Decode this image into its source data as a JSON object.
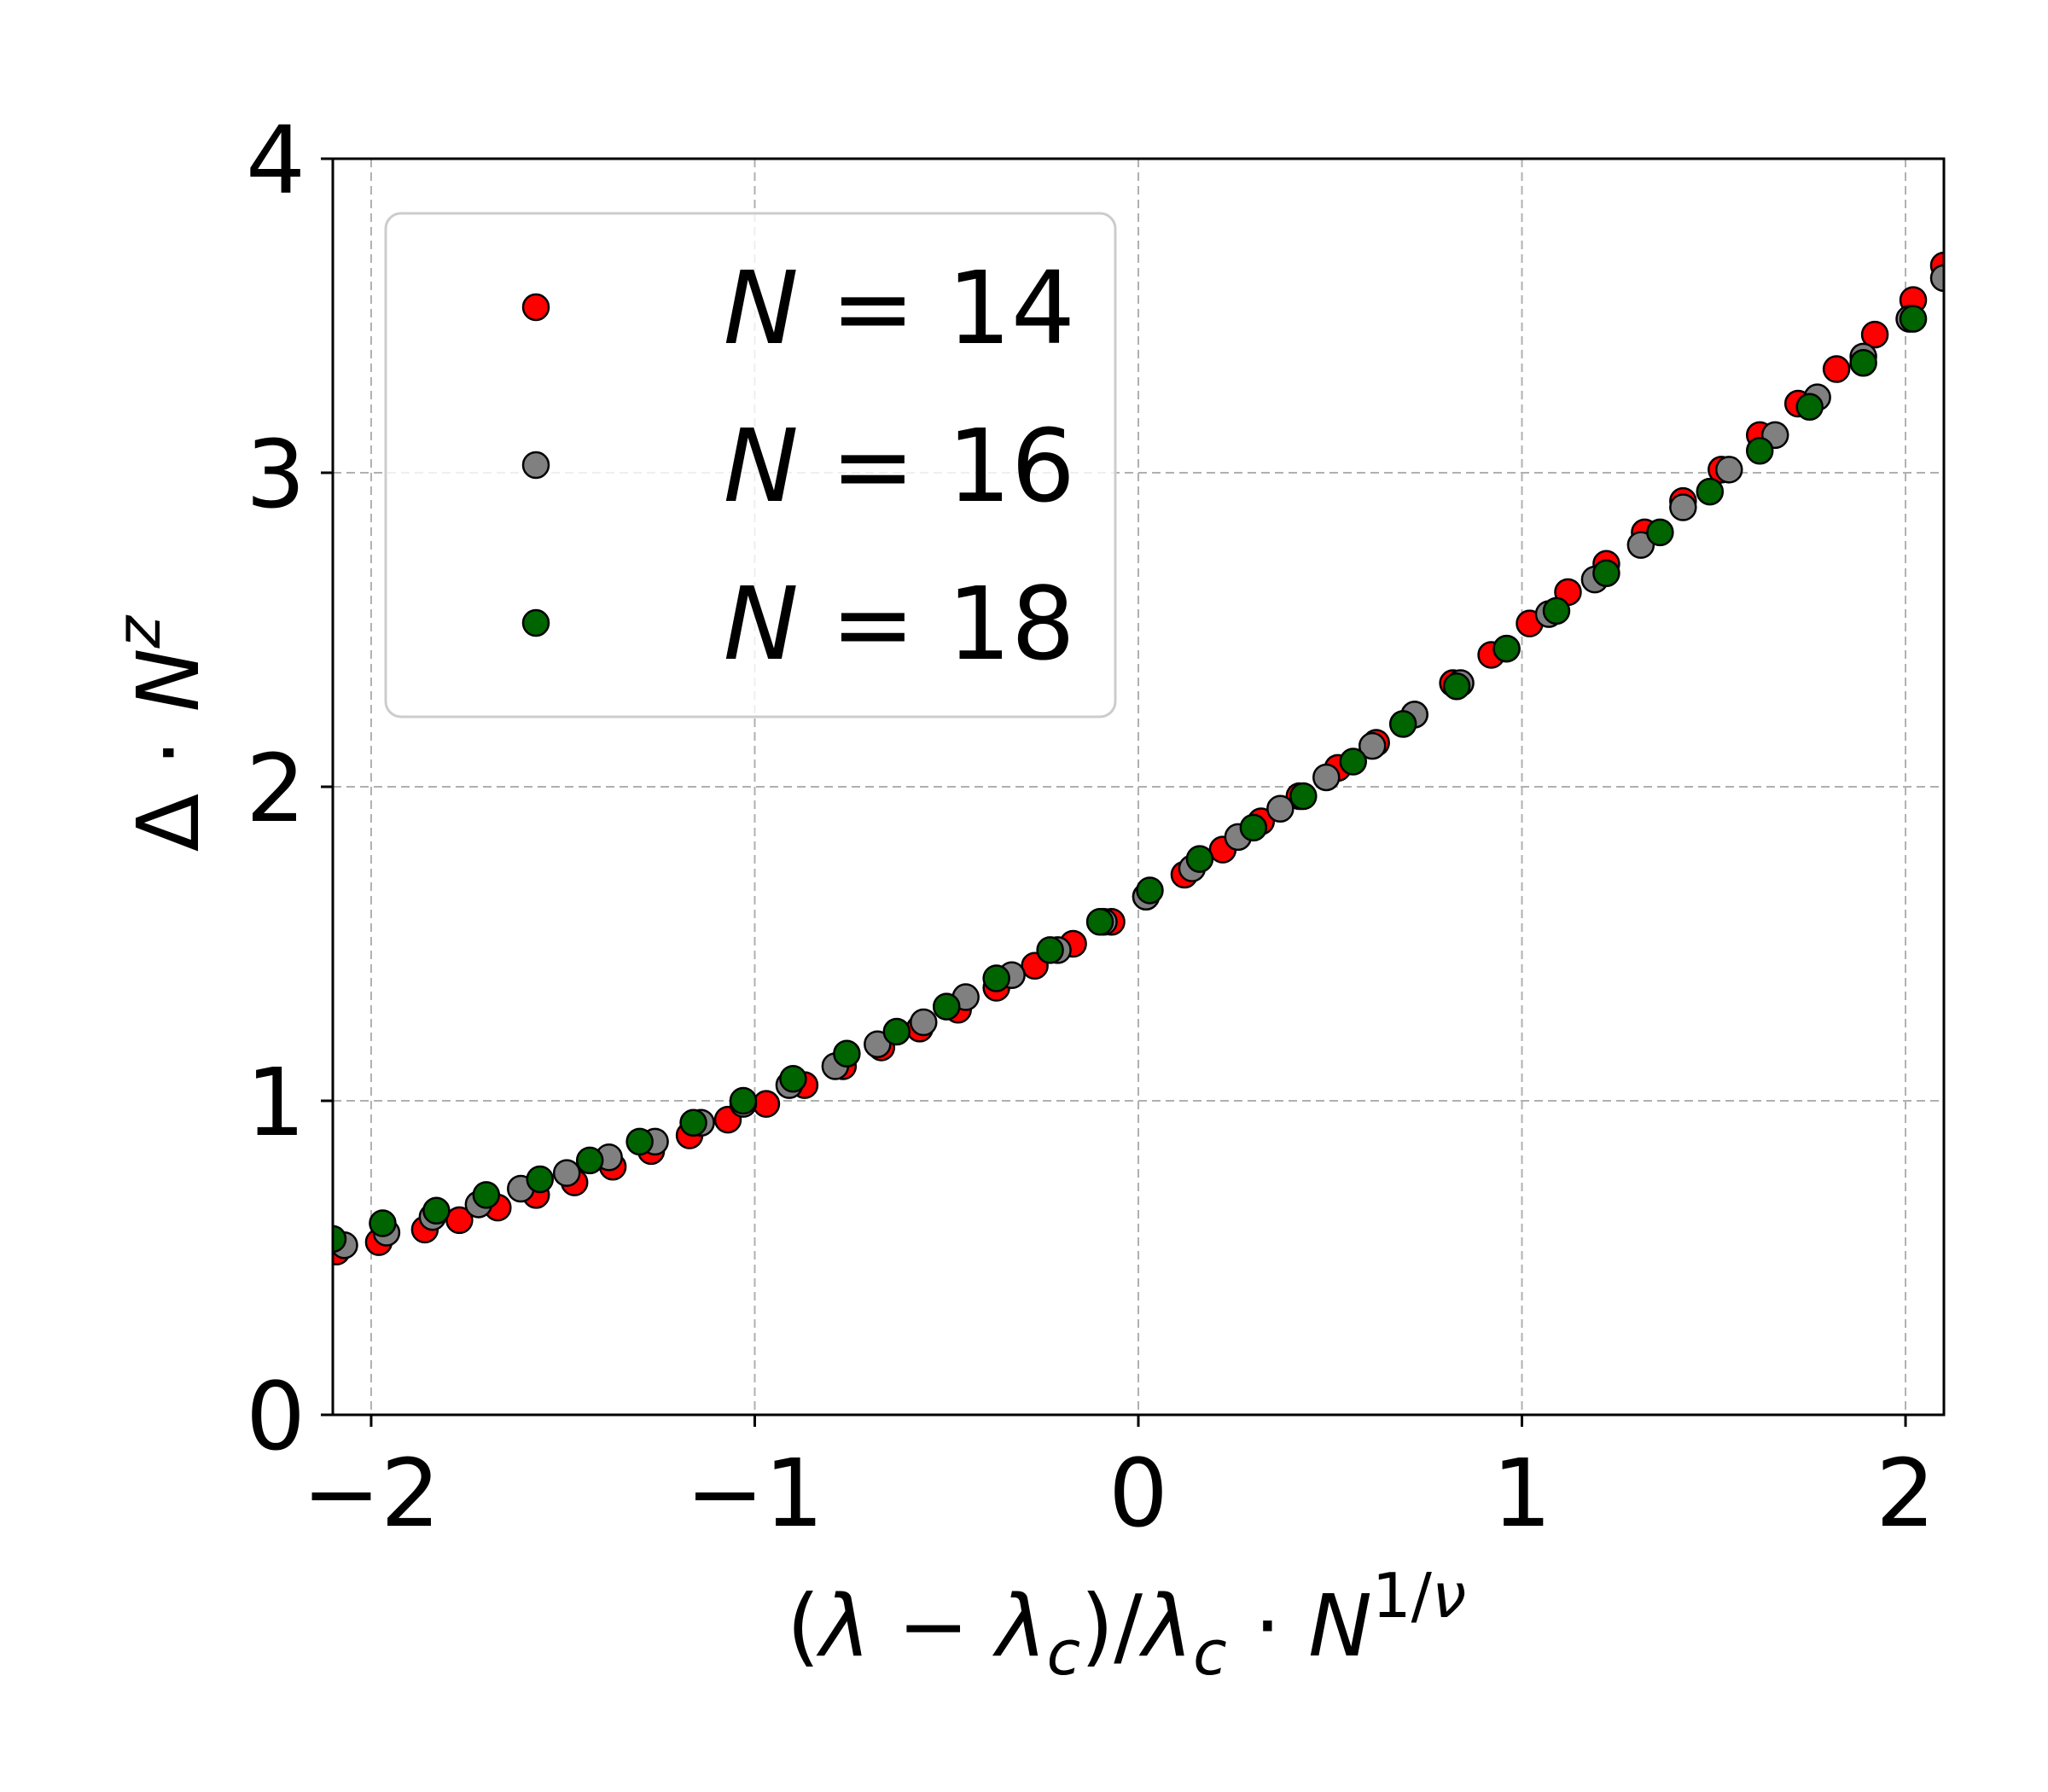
{
  "chart_data": {
    "type": "scatter",
    "xlabel": "(λ − λ_c)/λ_c · N^{1/ν}",
    "ylabel": "Δ · N^z",
    "xlim": [
      -2.1,
      2.1
    ],
    "ylim": [
      0,
      4
    ],
    "xticks": [
      -2,
      -1,
      0,
      1,
      2
    ],
    "xtick_labels": [
      "−2",
      "−1",
      "0",
      "1",
      "2"
    ],
    "yticks": [
      0,
      1,
      2,
      3,
      4
    ],
    "ytick_labels": [
      "0",
      "1",
      "2",
      "3",
      "4"
    ],
    "grid": true,
    "legend_position": "upper-left",
    "series": [
      {
        "name": "N = 14",
        "label_var": "N",
        "label_value": "= 14",
        "color": "#ff0000",
        "x": [
          -2.09,
          -1.98,
          -1.86,
          -1.77,
          -1.67,
          -1.57,
          -1.47,
          -1.37,
          -1.27,
          -1.17,
          -1.07,
          -0.97,
          -0.87,
          -0.77,
          -0.67,
          -0.57,
          -0.47,
          -0.37,
          -0.27,
          -0.17,
          -0.07,
          0.02,
          0.12,
          0.22,
          0.32,
          0.42,
          0.52,
          0.62,
          0.72,
          0.82,
          0.92,
          1.02,
          1.12,
          1.22,
          1.32,
          1.42,
          1.52,
          1.62,
          1.72,
          1.82,
          1.92,
          2.02,
          2.1
        ],
        "y": [
          0.52,
          0.55,
          0.59,
          0.62,
          0.66,
          0.7,
          0.74,
          0.79,
          0.84,
          0.89,
          0.94,
          0.99,
          1.05,
          1.11,
          1.17,
          1.23,
          1.29,
          1.36,
          1.43,
          1.5,
          1.57,
          1.65,
          1.72,
          1.8,
          1.89,
          1.97,
          2.06,
          2.14,
          2.23,
          2.33,
          2.42,
          2.52,
          2.62,
          2.71,
          2.81,
          2.91,
          3.01,
          3.12,
          3.22,
          3.33,
          3.44,
          3.55,
          3.66
        ]
      },
      {
        "name": "N = 16",
        "label_var": "N",
        "label_value": "= 16",
        "color": "#808080",
        "x": [
          -2.07,
          -1.96,
          -1.84,
          -1.72,
          -1.61,
          -1.49,
          -1.38,
          -1.26,
          -1.14,
          -1.03,
          -0.91,
          -0.79,
          -0.68,
          -0.56,
          -0.45,
          -0.33,
          -0.21,
          -0.09,
          0.02,
          0.14,
          0.26,
          0.37,
          0.49,
          0.61,
          0.72,
          0.84,
          0.96,
          1.07,
          1.19,
          1.31,
          1.42,
          1.54,
          1.66,
          1.77,
          1.89,
          2.01,
          2.1
        ],
        "y": [
          0.54,
          0.58,
          0.63,
          0.67,
          0.72,
          0.77,
          0.82,
          0.87,
          0.93,
          0.99,
          1.05,
          1.11,
          1.18,
          1.25,
          1.33,
          1.4,
          1.48,
          1.57,
          1.65,
          1.74,
          1.84,
          1.93,
          2.03,
          2.13,
          2.23,
          2.33,
          2.44,
          2.55,
          2.66,
          2.77,
          2.89,
          3.01,
          3.12,
          3.24,
          3.37,
          3.49,
          3.62
        ]
      },
      {
        "name": "N = 18",
        "label_var": "N",
        "label_value": "= 18",
        "color": "#006400",
        "x": [
          -2.1,
          -1.97,
          -1.83,
          -1.7,
          -1.56,
          -1.43,
          -1.3,
          -1.16,
          -1.03,
          -0.9,
          -0.76,
          -0.63,
          -0.5,
          -0.37,
          -0.23,
          -0.1,
          0.03,
          0.16,
          0.3,
          0.43,
          0.56,
          0.69,
          0.83,
          0.96,
          1.09,
          1.22,
          1.36,
          1.49,
          1.62,
          1.75,
          1.89,
          2.02
        ],
        "y": [
          0.56,
          0.61,
          0.65,
          0.7,
          0.75,
          0.81,
          0.87,
          0.93,
          1.0,
          1.07,
          1.15,
          1.22,
          1.3,
          1.39,
          1.48,
          1.57,
          1.67,
          1.77,
          1.87,
          1.97,
          2.08,
          2.2,
          2.32,
          2.44,
          2.56,
          2.68,
          2.81,
          2.94,
          3.07,
          3.21,
          3.35,
          3.49
        ]
      }
    ]
  }
}
